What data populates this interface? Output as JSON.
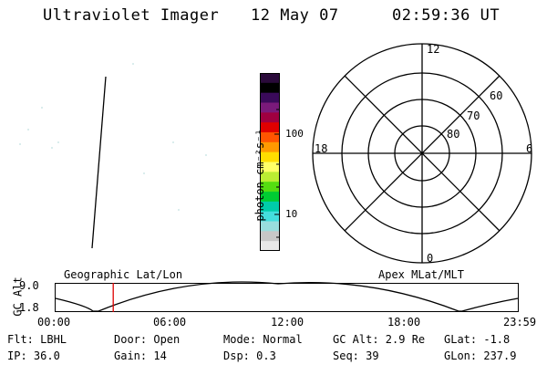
{
  "header": {
    "title": "Ultraviolet Imager",
    "date": "12 May 07",
    "time": "02:59:36 UT"
  },
  "colorbar": {
    "unit_label": "photon cm⁻²s⁻¹",
    "tick_100": "100",
    "tick_10": "10",
    "colors": [
      "#2a0a3a",
      "#000000",
      "#3a0a5a",
      "#7a1a7a",
      "#a00040",
      "#e00000",
      "#ff5500",
      "#ff9900",
      "#ffdd00",
      "#ffff66",
      "#bbee33",
      "#55dd11",
      "#00cc33",
      "#00ccaa",
      "#44dddd",
      "#99dddd",
      "#c7c7c7",
      "#e8e8e8"
    ]
  },
  "polar": {
    "labels": {
      "top": "12",
      "left": "18",
      "right": "6",
      "bottom": "0"
    },
    "lat_labels": [
      "60",
      "70",
      "80"
    ]
  },
  "timeline": {
    "left_title": "Geographic Lat/Lon",
    "right_title": "Apex MLat/MLT",
    "y_label": "GC Alt",
    "y_top": "9.0",
    "y_bottom": "1.8",
    "x_ticks": [
      "00:00",
      "06:00",
      "12:00",
      "18:00",
      "23:59"
    ],
    "marker_color": "#dd0000"
  },
  "info": {
    "flt": "Flt: LBHL",
    "door": "Door: Open",
    "mode": "Mode: Normal",
    "gcalt": "GC Alt: 2.9 Re",
    "glat": "GLat:  -1.8",
    "ip": "IP: 36.0",
    "gain": "Gain: 14",
    "dsp": "Dsp:    0.3",
    "seq": "Seq: 39",
    "glon": "GLon: 237.9"
  }
}
